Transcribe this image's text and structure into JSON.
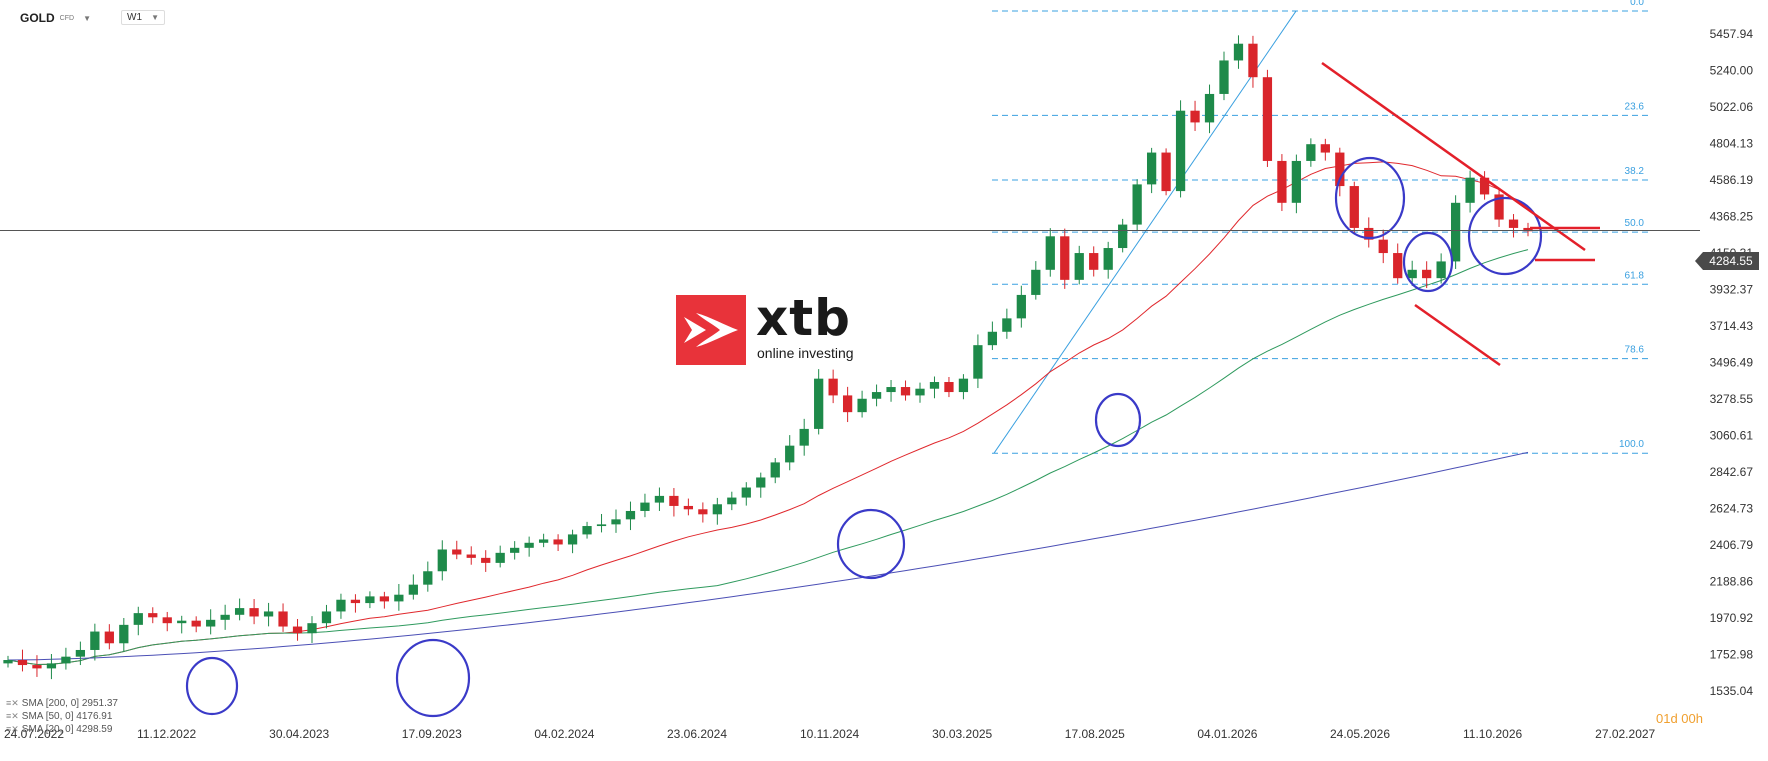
{
  "header": {
    "symbol": "GOLD",
    "symbol_badge": "CFD",
    "timeframe": "W1"
  },
  "logo": {
    "brand": "xtb",
    "tagline": "online investing"
  },
  "current_price": "4284.55",
  "countdown": "01d 00h",
  "legend": [
    {
      "label": "SMA [200, 0] 2951.37"
    },
    {
      "label": "SMA [50, 0] 4176.91"
    },
    {
      "label": "SMA [20, 0] 4298.59"
    }
  ],
  "colors": {
    "bull": "#1e8a4a",
    "bear": "#d9252b",
    "sma20": "#e0282d",
    "sma50": "#2f9a5e",
    "sma200": "#4b4fb5",
    "fib": "#3aa0e0",
    "annotation_red": "#e3202a",
    "circle": "#3a3ac8"
  },
  "chart_data": {
    "type": "candlestick",
    "timeframe": "W1",
    "price_axis": [
      "5457.94",
      "5240.00",
      "5022.06",
      "4804.13",
      "4586.19",
      "4368.25",
      "4150.31",
      "3932.37",
      "3714.43",
      "3496.49",
      "3278.55",
      "3060.61",
      "2842.67",
      "2624.73",
      "2406.79",
      "2188.86",
      "1970.92",
      "1752.98",
      "1535.04"
    ],
    "ylim": [
      1535.04,
      5680
    ],
    "date_axis": [
      "24.07.2022",
      "11.12.2022",
      "30.04.2023",
      "17.09.2023",
      "04.02.2024",
      "23.06.2024",
      "10.11.2024",
      "30.03.2025",
      "17.08.2025",
      "04.01.2026",
      "24.05.2026",
      "11.10.2026",
      "27.02.2027"
    ],
    "fibonacci": {
      "levels": [
        "0.0",
        "23.6",
        "38.2",
        "50.0",
        "61.8",
        "78.6",
        "100.0"
      ],
      "high": 5595,
      "low": 2955
    },
    "current_price": 4284.55,
    "trend_path": [
      1720,
      1690,
      1670,
      1700,
      1740,
      1780,
      1890,
      1820,
      1930,
      2000,
      1975,
      1940,
      1955,
      1920,
      1960,
      1990,
      2030,
      1980,
      2010,
      1920,
      1880,
      1940,
      2010,
      2080,
      2060,
      2100,
      2070,
      2110,
      2170,
      2250,
      2380,
      2350,
      2330,
      2300,
      2360,
      2390,
      2420,
      2440,
      2410,
      2470,
      2520,
      2530,
      2560,
      2610,
      2660,
      2700,
      2640,
      2620,
      2590,
      2650,
      2690,
      2750,
      2810,
      2900,
      3000,
      3100,
      3400,
      3300,
      3200,
      3280,
      3320,
      3350,
      3300,
      3340,
      3380,
      3320,
      3400,
      3600,
      3680,
      3760,
      3900,
      4050,
      4250,
      3990,
      4150,
      4050,
      4180,
      4320,
      4560,
      4750,
      4520,
      5000,
      4930,
      5100,
      5300,
      5400,
      5200,
      4700,
      4450,
      4700,
      4800,
      4750,
      4550,
      4300,
      4230,
      4150,
      4000,
      4050,
      4000,
      4100,
      4450,
      4600,
      4500,
      4350,
      4300,
      4280
    ]
  }
}
